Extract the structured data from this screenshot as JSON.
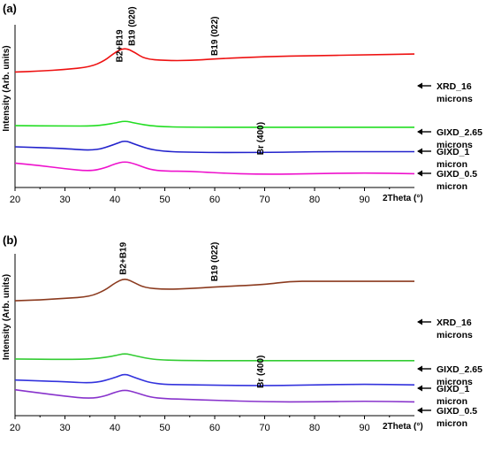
{
  "chart_data": [
    {
      "type": "line",
      "panel_label": "(a)",
      "xlabel": "2Theta (°)",
      "ylabel": "Intensity (Arb. units)",
      "xlim": [
        20,
        100
      ],
      "xticks": [
        20,
        30,
        40,
        50,
        60,
        70,
        80,
        90
      ],
      "series": [
        {
          "name": "XRD_16 microns",
          "name_lines": [
            "XRD_16",
            "microns"
          ],
          "color": "#ee1111",
          "x": [
            20,
            25,
            30,
            35,
            38,
            40,
            42,
            44,
            46,
            50,
            55,
            60,
            70,
            80,
            90,
            100
          ],
          "y": [
            0.42,
            0.43,
            0.45,
            0.48,
            0.56,
            0.66,
            0.72,
            0.66,
            0.58,
            0.56,
            0.56,
            0.58,
            0.61,
            0.62,
            0.63,
            0.64
          ]
        },
        {
          "name": "GIXD_2.65 microns",
          "name_lines": [
            "GIXD_2.65",
            "microns"
          ],
          "color": "#22dd22",
          "x": [
            20,
            30,
            36,
            40,
            42,
            44,
            48,
            55,
            70,
            85,
            100
          ],
          "y": [
            -0.24,
            -0.245,
            -0.245,
            -0.21,
            -0.18,
            -0.21,
            -0.25,
            -0.26,
            -0.26,
            -0.26,
            -0.26
          ]
        },
        {
          "name": "GIXD_1 micron",
          "name_lines": [
            "GIXD_1",
            "micron"
          ],
          "color": "#2222cc",
          "x": [
            20,
            30,
            36,
            40,
            42,
            44,
            48,
            55,
            70,
            80,
            90,
            100
          ],
          "y": [
            -0.5,
            -0.52,
            -0.55,
            -0.47,
            -0.42,
            -0.47,
            -0.55,
            -0.57,
            -0.57,
            -0.56,
            -0.56,
            -0.56
          ]
        },
        {
          "name": "GIXD_0.5 micron",
          "name_lines": [
            "GIXD_0.5",
            "micron"
          ],
          "color": "#ee11cc",
          "x": [
            20,
            25,
            30,
            35,
            38,
            40,
            42,
            44,
            47,
            50,
            55,
            60,
            70,
            80,
            90,
            100
          ],
          "y": [
            -0.7,
            -0.73,
            -0.77,
            -0.8,
            -0.76,
            -0.71,
            -0.68,
            -0.71,
            -0.78,
            -0.8,
            -0.8,
            -0.82,
            -0.84,
            -0.83,
            -0.82,
            -0.83
          ]
        }
      ],
      "annotations": [
        {
          "text": "B2+B19",
          "x": 41.5,
          "y": 0.74,
          "rotate": 0
        },
        {
          "text": "B19 (020)",
          "x": 43.3,
          "y": 0.74,
          "rotate": -90
        },
        {
          "text": "B19 (022)",
          "x": 59.8,
          "y": 0.62,
          "rotate": -90
        },
        {
          "text": "Br (400)",
          "x": 69,
          "y": -0.6,
          "rotate": -90
        }
      ]
    },
    {
      "type": "line",
      "panel_label": "(b)",
      "xlabel": "2Theta (°)",
      "ylabel": "Intensity (Arb. units)",
      "xlim": [
        20,
        100
      ],
      "xticks": [
        20,
        30,
        40,
        50,
        60,
        70,
        80,
        90
      ],
      "series": [
        {
          "name": "XRD_16 microns",
          "name_lines": [
            "XRD_16",
            "microns"
          ],
          "color": "#8b3a1e",
          "x": [
            20,
            25,
            30,
            35,
            38,
            40,
            42,
            44,
            46,
            50,
            55,
            60,
            70,
            75,
            80,
            90,
            100
          ],
          "y": [
            0.42,
            0.43,
            0.45,
            0.47,
            0.55,
            0.64,
            0.7,
            0.64,
            0.58,
            0.56,
            0.57,
            0.59,
            0.62,
            0.66,
            0.66,
            0.66,
            0.66
          ]
        },
        {
          "name": "GIXD_2.65 microns",
          "name_lines": [
            "GIXD_2.65",
            "microns"
          ],
          "color": "#33cc33",
          "x": [
            20,
            30,
            36,
            40,
            42,
            44,
            48,
            55,
            70,
            85,
            100
          ],
          "y": [
            -0.3,
            -0.305,
            -0.3,
            -0.26,
            -0.23,
            -0.26,
            -0.31,
            -0.32,
            -0.32,
            -0.32,
            -0.32
          ]
        },
        {
          "name": "GIXD_1 micron",
          "name_lines": [
            "GIXD_1",
            "micron"
          ],
          "color": "#3333dd",
          "x": [
            20,
            30,
            36,
            40,
            42,
            44,
            48,
            55,
            70,
            80,
            90,
            100
          ],
          "y": [
            -0.56,
            -0.58,
            -0.6,
            -0.53,
            -0.48,
            -0.53,
            -0.61,
            -0.62,
            -0.63,
            -0.62,
            -0.61,
            -0.62
          ]
        },
        {
          "name": "GIXD_0.5 micron",
          "name_lines": [
            "GIXD_0.5",
            "micron"
          ],
          "color": "#8833cc",
          "x": [
            20,
            25,
            30,
            35,
            38,
            40,
            42,
            44,
            47,
            50,
            55,
            60,
            70,
            80,
            90,
            100
          ],
          "y": [
            -0.68,
            -0.72,
            -0.76,
            -0.79,
            -0.76,
            -0.71,
            -0.68,
            -0.71,
            -0.77,
            -0.79,
            -0.8,
            -0.81,
            -0.83,
            -0.83,
            -0.82,
            -0.83
          ]
        }
      ],
      "annotations": [
        {
          "text": "B2+B19",
          "x": 41.5,
          "y": 0.74,
          "rotate": -90
        },
        {
          "text": "B19 (022)",
          "x": 59.8,
          "y": 0.66,
          "rotate": -90
        },
        {
          "text": "Br (400)",
          "x": 69,
          "y": -0.66,
          "rotate": -90
        }
      ]
    }
  ]
}
